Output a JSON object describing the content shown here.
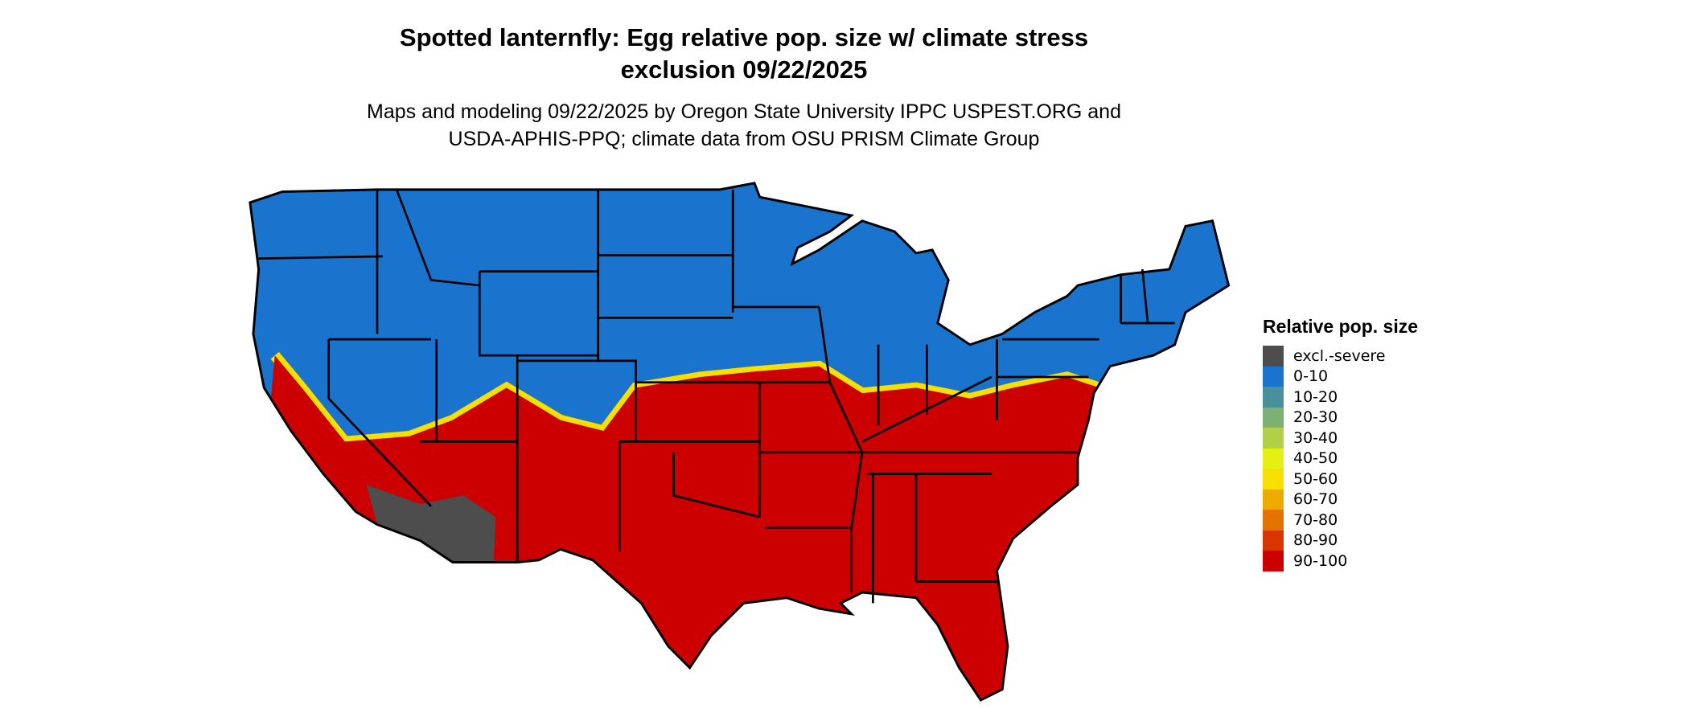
{
  "title": {
    "line1": "Spotted lanternfly: Egg relative pop. size w/ climate stress",
    "line2": "exclusion 09/22/2025"
  },
  "subtitle": {
    "line1": "Maps and modeling 09/22/2025 by Oregon State University IPPC USPEST.ORG and",
    "line2": "USDA-APHIS-PPQ; climate data from OSU PRISM Climate Group"
  },
  "map": {
    "region": "Contiguous United States",
    "border_color": "#000000",
    "dominant_north": "0-10",
    "dominant_south": "90-100",
    "excluded_area": "excl.-severe"
  },
  "legend": {
    "title": "Relative pop. size",
    "items": [
      {
        "label": "excl.-severe",
        "color": "#4d4d4d"
      },
      {
        "label": "0-10",
        "color": "#1a73cc"
      },
      {
        "label": "10-20",
        "color": "#48909c"
      },
      {
        "label": "20-30",
        "color": "#7db073"
      },
      {
        "label": "30-40",
        "color": "#b2d046"
      },
      {
        "label": "40-50",
        "color": "#e4ef14"
      },
      {
        "label": "50-60",
        "color": "#f7e000"
      },
      {
        "label": "60-70",
        "color": "#eeaa00"
      },
      {
        "label": "70-80",
        "color": "#e37200"
      },
      {
        "label": "80-90",
        "color": "#d93500"
      },
      {
        "label": "90-100",
        "color": "#cc0000"
      }
    ]
  }
}
